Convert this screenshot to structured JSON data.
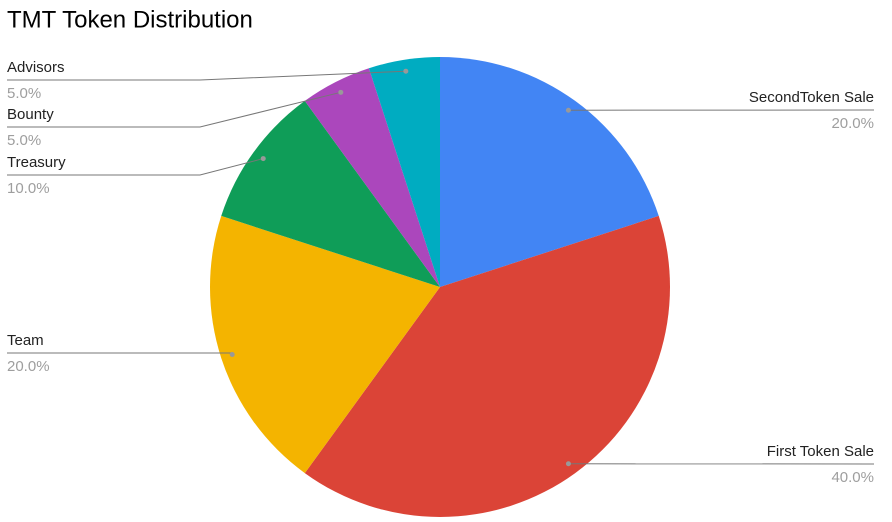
{
  "chart_data": {
    "type": "pie",
    "title": "TMT Token Distribution",
    "categories": [
      "SecondToken Sale",
      "First Token Sale",
      "Team",
      "Treasury",
      "Bounty",
      "Advisors"
    ],
    "values": [
      20,
      40,
      20,
      10,
      5,
      5
    ],
    "value_labels": [
      "20.0%",
      "40.0%",
      "20.0%",
      "10.0%",
      "5.0%",
      "5.0%"
    ],
    "colors": [
      "#4285f4",
      "#db4437",
      "#f4b400",
      "#0f9d58",
      "#ab47bc",
      "#00acc1"
    ]
  }
}
